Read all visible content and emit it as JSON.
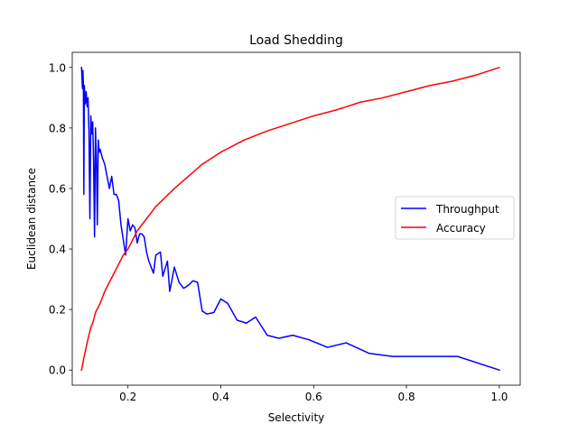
{
  "chart_data": {
    "type": "line",
    "title": "Load Shedding",
    "xlabel": "Selectivity",
    "ylabel": "Euclidean distance",
    "xlim": [
      0.08,
      1.045
    ],
    "ylim": [
      -0.05,
      1.05
    ],
    "xticks": [
      0.2,
      0.4,
      0.6,
      0.8,
      1.0
    ],
    "xtick_labels": [
      "0.2",
      "0.4",
      "0.6",
      "0.8",
      "1.0"
    ],
    "yticks": [
      0.0,
      0.2,
      0.4,
      0.6,
      0.8,
      1.0
    ],
    "ytick_labels": [
      "0.0",
      "0.2",
      "0.4",
      "0.6",
      "0.8",
      "1.0"
    ],
    "grid": false,
    "legend": {
      "position": "right",
      "entries": [
        "Throughput",
        "Accuracy"
      ]
    },
    "series": [
      {
        "name": "Throughput",
        "color": "#0000ff",
        "points": [
          [
            0.1,
            1.0
          ],
          [
            0.102,
            0.93
          ],
          [
            0.103,
            0.99
          ],
          [
            0.104,
            0.94
          ],
          [
            0.105,
            0.58
          ],
          [
            0.106,
            0.94
          ],
          [
            0.108,
            0.88
          ],
          [
            0.11,
            0.92
          ],
          [
            0.112,
            0.87
          ],
          [
            0.114,
            0.9
          ],
          [
            0.116,
            0.79
          ],
          [
            0.118,
            0.5
          ],
          [
            0.12,
            0.84
          ],
          [
            0.122,
            0.78
          ],
          [
            0.124,
            0.82
          ],
          [
            0.126,
            0.69
          ],
          [
            0.128,
            0.44
          ],
          [
            0.13,
            0.8
          ],
          [
            0.132,
            0.7
          ],
          [
            0.134,
            0.48
          ],
          [
            0.136,
            0.76
          ],
          [
            0.138,
            0.72
          ],
          [
            0.14,
            0.73
          ],
          [
            0.145,
            0.7
          ],
          [
            0.15,
            0.68
          ],
          [
            0.155,
            0.64
          ],
          [
            0.16,
            0.6
          ],
          [
            0.165,
            0.64
          ],
          [
            0.17,
            0.58
          ],
          [
            0.175,
            0.58
          ],
          [
            0.18,
            0.56
          ],
          [
            0.185,
            0.48
          ],
          [
            0.19,
            0.43
          ],
          [
            0.195,
            0.38
          ],
          [
            0.2,
            0.5
          ],
          [
            0.205,
            0.46
          ],
          [
            0.21,
            0.48
          ],
          [
            0.215,
            0.47
          ],
          [
            0.22,
            0.42
          ],
          [
            0.225,
            0.45
          ],
          [
            0.23,
            0.45
          ],
          [
            0.235,
            0.44
          ],
          [
            0.24,
            0.39
          ],
          [
            0.245,
            0.36
          ],
          [
            0.25,
            0.34
          ],
          [
            0.255,
            0.32
          ],
          [
            0.26,
            0.38
          ],
          [
            0.27,
            0.39
          ],
          [
            0.275,
            0.31
          ],
          [
            0.285,
            0.36
          ],
          [
            0.29,
            0.26
          ],
          [
            0.3,
            0.34
          ],
          [
            0.31,
            0.29
          ],
          [
            0.32,
            0.27
          ],
          [
            0.33,
            0.28
          ],
          [
            0.34,
            0.295
          ],
          [
            0.35,
            0.29
          ],
          [
            0.36,
            0.195
          ],
          [
            0.37,
            0.185
          ],
          [
            0.385,
            0.19
          ],
          [
            0.4,
            0.235
          ],
          [
            0.415,
            0.22
          ],
          [
            0.435,
            0.165
          ],
          [
            0.455,
            0.155
          ],
          [
            0.475,
            0.175
          ],
          [
            0.5,
            0.115
          ],
          [
            0.525,
            0.105
          ],
          [
            0.555,
            0.115
          ],
          [
            0.59,
            0.1
          ],
          [
            0.63,
            0.075
          ],
          [
            0.67,
            0.09
          ],
          [
            0.72,
            0.055
          ],
          [
            0.77,
            0.045
          ],
          [
            0.83,
            0.045
          ],
          [
            0.91,
            0.045
          ],
          [
            1.0,
            0.0
          ]
        ]
      },
      {
        "name": "Accuracy",
        "color": "#ff0000",
        "points": [
          [
            0.1,
            0.0
          ],
          [
            0.105,
            0.04
          ],
          [
            0.11,
            0.075
          ],
          [
            0.115,
            0.11
          ],
          [
            0.12,
            0.14
          ],
          [
            0.125,
            0.16
          ],
          [
            0.13,
            0.19
          ],
          [
            0.14,
            0.22
          ],
          [
            0.15,
            0.26
          ],
          [
            0.16,
            0.29
          ],
          [
            0.17,
            0.32
          ],
          [
            0.18,
            0.35
          ],
          [
            0.19,
            0.38
          ],
          [
            0.2,
            0.4
          ],
          [
            0.21,
            0.43
          ],
          [
            0.22,
            0.46
          ],
          [
            0.24,
            0.5
          ],
          [
            0.26,
            0.54
          ],
          [
            0.28,
            0.57
          ],
          [
            0.3,
            0.6
          ],
          [
            0.33,
            0.64
          ],
          [
            0.36,
            0.68
          ],
          [
            0.4,
            0.72
          ],
          [
            0.45,
            0.76
          ],
          [
            0.5,
            0.79
          ],
          [
            0.55,
            0.815
          ],
          [
            0.6,
            0.84
          ],
          [
            0.65,
            0.86
          ],
          [
            0.7,
            0.885
          ],
          [
            0.75,
            0.9
          ],
          [
            0.8,
            0.92
          ],
          [
            0.85,
            0.94
          ],
          [
            0.9,
            0.955
          ],
          [
            0.95,
            0.975
          ],
          [
            1.0,
            1.0
          ]
        ]
      }
    ]
  }
}
